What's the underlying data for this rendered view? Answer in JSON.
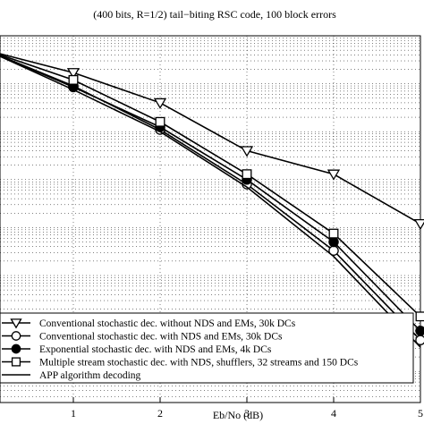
{
  "chart_data": {
    "type": "line",
    "title": "(400 bits, R=1/2) tail−biting RSC code, 100 block errors",
    "xlabel": "Eb/No (dB)",
    "ylabel": "",
    "x_ticks": [
      "1",
      "2",
      "3",
      "4",
      "5"
    ],
    "xlim": [
      0,
      5
    ],
    "y_scale": "log",
    "ylim": [
      1e-07,
      1
    ],
    "grid": true,
    "legend_position": "bottom-left",
    "x": [
      0,
      1,
      2,
      3,
      4,
      5
    ],
    "series": [
      {
        "name": "Conventional stochastic dec. without NDS and EMs, 30k DCs",
        "marker": "triangle-down",
        "values": [
          0.5,
          0.17,
          0.04,
          0.004,
          0.0013,
          0.00012
        ]
      },
      {
        "name": "Conventional stochastic dec. with NDS and EMs, 30k DCs",
        "marker": "circle-open",
        "values": [
          0.5,
          0.09,
          0.011,
          0.0008,
          3.3e-05,
          4.5e-07
        ]
      },
      {
        "name": "Exponential stochastic dec. with NDS and EMs, 4k DCs",
        "marker": "circle-filled",
        "values": [
          0.5,
          0.085,
          0.0125,
          0.001,
          5e-05,
          7e-07
        ]
      },
      {
        "name": "Multiple stream stochastic dec. with NDS, shufflers, 32 streams and 150 DCs",
        "marker": "square",
        "values": [
          0.5,
          0.12,
          0.016,
          0.0013,
          7.5e-05,
          1.4e-06
        ]
      },
      {
        "name": "APP algorithm decoding",
        "marker": "none",
        "values": [
          0.5,
          0.075,
          0.01,
          0.0007,
          2.5e-05,
          3.2e-07
        ]
      }
    ]
  }
}
